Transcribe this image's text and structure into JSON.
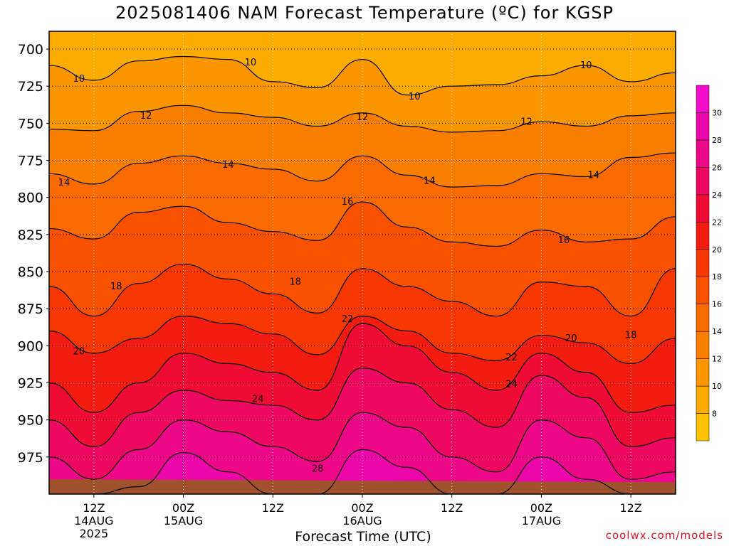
{
  "chart_data": {
    "type": "heatmap",
    "title": "2025081406 NAM Forecast Temperature (ºC) for KGSP",
    "xlabel": "Forecast Time (UTC)",
    "ylabel": "",
    "credit": "coolwx.com/models",
    "y_ticks": [
      700,
      725,
      750,
      775,
      800,
      825,
      850,
      875,
      900,
      925,
      950,
      975
    ],
    "ylim": [
      1000,
      688
    ],
    "x_ticks": [
      {
        "hour": 6,
        "line1": "12Z",
        "line2": "14AUG",
        "line3": "2025"
      },
      {
        "hour": 18,
        "line1": "00Z",
        "line2": "15AUG",
        "line3": ""
      },
      {
        "hour": 30,
        "line1": "12Z",
        "line2": "",
        "line3": ""
      },
      {
        "hour": 42,
        "line1": "00Z",
        "line2": "16AUG",
        "line3": ""
      },
      {
        "hour": 54,
        "line1": "12Z",
        "line2": "",
        "line3": ""
      },
      {
        "hour": 66,
        "line1": "00Z",
        "line2": "17AUG",
        "line3": ""
      },
      {
        "hour": 78,
        "line1": "12Z",
        "line2": "",
        "line3": ""
      }
    ],
    "xlim": [
      0,
      84
    ],
    "colorbar": {
      "levels": [
        6,
        8,
        10,
        12,
        14,
        16,
        18,
        20,
        22,
        24,
        26,
        28,
        30,
        32
      ],
      "labels": [
        "8",
        "10",
        "12",
        "14",
        "16",
        "18",
        "20",
        "22",
        "24",
        "26",
        "28",
        "30"
      ],
      "colors": [
        "#fdc300",
        "#fcab00",
        "#fb9600",
        "#fa7e00",
        "#f96a00",
        "#f85200",
        "#f73700",
        "#f41c10",
        "#f00a36",
        "#ef0862",
        "#ee0788",
        "#ed07ab",
        "#f00cc8"
      ]
    },
    "grid": true,
    "contours": [
      {
        "level": 10,
        "label_positions": [
          [
            4,
            720
          ],
          [
            27,
            709
          ],
          [
            49,
            732
          ],
          [
            72,
            711
          ]
        ],
        "hours": [
          0,
          6,
          12,
          18,
          24,
          30,
          36,
          42,
          48,
          54,
          60,
          66,
          72,
          78,
          84
        ],
        "pressure": [
          711,
          721,
          708,
          705,
          707,
          722,
          726,
          707,
          731,
          725,
          724,
          718,
          711,
          722,
          716
        ]
      },
      {
        "level": 12,
        "label_positions": [
          [
            13,
            745
          ],
          [
            42,
            746
          ],
          [
            64,
            749
          ]
        ],
        "hours": [
          0,
          6,
          12,
          18,
          24,
          30,
          36,
          42,
          48,
          54,
          60,
          66,
          72,
          78,
          84
        ],
        "pressure": [
          754,
          755,
          742,
          738,
          743,
          746,
          752,
          743,
          752,
          756,
          755,
          749,
          752,
          745,
          743
        ]
      },
      {
        "level": 14,
        "label_positions": [
          [
            2,
            790
          ],
          [
            24,
            778
          ],
          [
            51,
            789
          ],
          [
            73,
            785
          ]
        ],
        "hours": [
          0,
          6,
          12,
          18,
          24,
          30,
          36,
          42,
          48,
          54,
          60,
          66,
          72,
          78,
          84
        ],
        "pressure": [
          784,
          791,
          777,
          772,
          777,
          781,
          789,
          772,
          785,
          793,
          792,
          784,
          786,
          773,
          770
        ]
      },
      {
        "level": 16,
        "label_positions": [
          [
            40,
            803
          ],
          [
            69,
            829
          ]
        ],
        "hours": [
          0,
          6,
          12,
          18,
          24,
          30,
          36,
          42,
          48,
          54,
          60,
          66,
          72,
          78,
          84
        ],
        "pressure": [
          821,
          828,
          810,
          806,
          817,
          823,
          829,
          803,
          820,
          830,
          833,
          822,
          830,
          828,
          813
        ]
      },
      {
        "level": 18,
        "label_positions": [
          [
            9,
            860
          ],
          [
            33,
            857
          ],
          [
            78,
            893
          ]
        ],
        "hours": [
          0,
          6,
          12,
          18,
          24,
          30,
          36,
          42,
          48,
          54,
          60,
          66,
          72,
          78,
          84
        ],
        "pressure": [
          860,
          880,
          858,
          845,
          855,
          865,
          878,
          848,
          860,
          870,
          880,
          857,
          860,
          880,
          848
        ]
      },
      {
        "level": 20,
        "label_positions": [
          [
            4,
            904
          ],
          [
            70,
            895
          ]
        ],
        "hours": [
          0,
          6,
          12,
          18,
          24,
          30,
          36,
          42,
          48,
          54,
          60,
          66,
          72,
          78,
          84
        ],
        "pressure": [
          890,
          905,
          895,
          880,
          885,
          892,
          906,
          880,
          890,
          905,
          910,
          893,
          898,
          912,
          895
        ]
      },
      {
        "level": 22,
        "label_positions": [
          [
            40,
            882
          ],
          [
            62,
            908
          ]
        ],
        "hours": [
          0,
          6,
          12,
          18,
          24,
          30,
          36,
          42,
          48,
          54,
          60,
          66,
          72,
          78,
          84
        ],
        "pressure": [
          925,
          945,
          925,
          905,
          912,
          918,
          930,
          885,
          900,
          918,
          930,
          905,
          918,
          945,
          940
        ]
      },
      {
        "level": 24,
        "label_positions": [
          [
            28,
            936
          ],
          [
            62,
            926
          ]
        ],
        "hours": [
          0,
          6,
          12,
          18,
          24,
          30,
          36,
          42,
          48,
          54,
          60,
          66,
          72,
          78,
          84
        ],
        "pressure": [
          950,
          968,
          945,
          930,
          937,
          940,
          950,
          915,
          925,
          943,
          955,
          920,
          935,
          968,
          962
        ]
      },
      {
        "level": 26,
        "label_positions": [],
        "hours": [
          0,
          6,
          12,
          18,
          24,
          30,
          36,
          42,
          48,
          54,
          60,
          66,
          72,
          78,
          84
        ],
        "pressure": [
          975,
          990,
          970,
          950,
          958,
          968,
          978,
          945,
          955,
          975,
          985,
          950,
          962,
          990,
          985
        ]
      },
      {
        "level": 28,
        "label_positions": [
          [
            36,
            983
          ]
        ],
        "hours": [
          0,
          6,
          12,
          18,
          24,
          30,
          36,
          42,
          48,
          54,
          60,
          66,
          72,
          78,
          84
        ],
        "pressure": [
          1000,
          1000,
          995,
          972,
          985,
          1000,
          1000,
          970,
          982,
          1000,
          1000,
          975,
          990,
          1000,
          1000
        ]
      }
    ],
    "ground_color": "#a0522d"
  }
}
